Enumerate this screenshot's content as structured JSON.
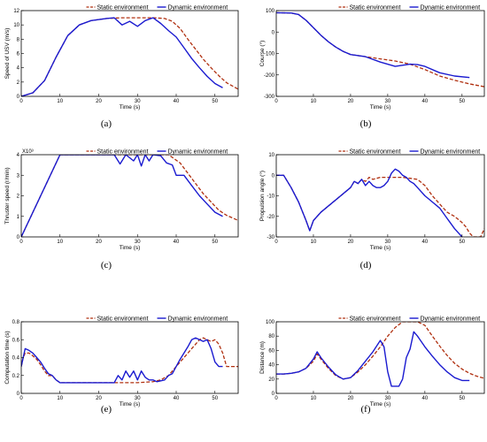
{
  "colors": {
    "static": "#b03010",
    "dynamic": "#1a1ad0",
    "axis": "#000000"
  },
  "chart_data": [
    {
      "type": "line",
      "caption": "(a)",
      "xlabel": "Time (s)",
      "ylabel": "Speed of USV (m/s)",
      "xlim": [
        0,
        56
      ],
      "ylim": [
        0,
        12
      ],
      "xticks": [
        0,
        10,
        20,
        30,
        40,
        50
      ],
      "yticks": [
        0,
        2,
        4,
        6,
        8,
        10,
        12
      ],
      "series": [
        {
          "name": "Static environment",
          "style": "dashed",
          "x": [
            0,
            3,
            6,
            9,
            12,
            15,
            18,
            22,
            26,
            30,
            34,
            37,
            39,
            41,
            43,
            45,
            47,
            49,
            51,
            53,
            56
          ],
          "y": [
            0,
            0.5,
            2.2,
            5.5,
            8.5,
            10,
            10.6,
            10.9,
            11,
            11,
            11,
            10.9,
            10.5,
            9.5,
            8,
            6.6,
            5.2,
            4,
            2.9,
            1.9,
            1
          ]
        },
        {
          "name": "Dynamic environment",
          "style": "solid",
          "x": [
            0,
            3,
            6,
            9,
            12,
            15,
            18,
            22,
            24,
            26,
            28,
            30,
            32,
            34,
            36,
            38,
            40,
            42,
            44,
            46,
            48,
            50,
            52
          ],
          "y": [
            0,
            0.5,
            2.2,
            5.5,
            8.5,
            10,
            10.6,
            10.9,
            11,
            10,
            10.5,
            9.8,
            10.6,
            11,
            10.2,
            9.2,
            8.3,
            6.8,
            5.3,
            4,
            2.8,
            1.8,
            1.2
          ]
        }
      ]
    },
    {
      "type": "line",
      "caption": "(b)",
      "xlabel": "Time (s)",
      "ylabel": "Course (°)",
      "xlim": [
        0,
        56
      ],
      "ylim": [
        -300,
        100
      ],
      "xticks": [
        0,
        10,
        20,
        30,
        40,
        50
      ],
      "yticks": [
        -300,
        -200,
        -100,
        0,
        100
      ],
      "series": [
        {
          "name": "Static environment",
          "style": "dashed",
          "x": [
            0,
            4,
            6,
            8,
            10,
            12,
            14,
            16,
            18,
            20,
            24,
            28,
            32,
            36,
            40,
            44,
            48,
            52,
            56
          ],
          "y": [
            90,
            89,
            82,
            55,
            20,
            -15,
            -45,
            -70,
            -90,
            -105,
            -115,
            -125,
            -135,
            -150,
            -175,
            -205,
            -225,
            -242,
            -255
          ]
        },
        {
          "name": "Dynamic environment",
          "style": "solid",
          "x": [
            0,
            4,
            6,
            8,
            10,
            12,
            14,
            16,
            18,
            20,
            24,
            28,
            32,
            34,
            36,
            38,
            40,
            44,
            48,
            52
          ],
          "y": [
            90,
            89,
            82,
            55,
            20,
            -15,
            -45,
            -70,
            -90,
            -105,
            -115,
            -140,
            -160,
            -155,
            -150,
            -152,
            -160,
            -190,
            -205,
            -212
          ]
        }
      ]
    },
    {
      "type": "line",
      "caption": "(c)",
      "xlabel": "Time (s)",
      "ylabel": "Thruster speed (r/min)",
      "exponent_label": "X10³",
      "xlim": [
        0,
        56
      ],
      "ylim": [
        0,
        4
      ],
      "xticks": [
        0,
        10,
        20,
        30,
        40,
        50
      ],
      "yticks": [
        0,
        1,
        2,
        3,
        4
      ],
      "series": [
        {
          "name": "Static environment",
          "style": "dashed",
          "x": [
            0,
            10,
            20,
            30,
            36,
            38,
            41,
            43,
            45,
            47,
            49,
            51,
            53,
            56
          ],
          "y": [
            0,
            4,
            4,
            4,
            4,
            4,
            3.6,
            3.1,
            2.6,
            2.1,
            1.7,
            1.3,
            1.05,
            0.8
          ]
        },
        {
          "name": "Dynamic environment",
          "style": "solid",
          "x": [
            0,
            10,
            20,
            24,
            25.5,
            27,
            29,
            30,
            31,
            32,
            33,
            34,
            36,
            37.5,
            39,
            40,
            42,
            44,
            46,
            48,
            50,
            52
          ],
          "y": [
            0,
            4,
            4,
            4,
            3.55,
            4,
            3.7,
            4,
            3.45,
            4,
            3.7,
            4,
            3.95,
            3.6,
            3.5,
            3,
            3,
            2.5,
            2,
            1.6,
            1.2,
            1
          ]
        }
      ]
    },
    {
      "type": "line",
      "caption": "(d)",
      "xlabel": "Time (s)",
      "ylabel": "Propulsion angle (°)",
      "xlim": [
        0,
        56
      ],
      "ylim": [
        -30,
        10
      ],
      "xticks": [
        0,
        10,
        20,
        30,
        40,
        50
      ],
      "yticks": [
        -30,
        -20,
        -10,
        0,
        10
      ],
      "series": [
        {
          "name": "Static environment",
          "style": "dashed",
          "x": [
            0,
            2,
            4,
            6,
            8,
            9,
            10,
            12,
            14,
            16,
            18,
            20,
            21,
            22,
            23,
            24,
            25,
            26,
            28,
            30,
            32,
            34,
            36,
            38,
            40,
            42,
            44,
            46,
            48,
            50,
            51,
            52,
            53,
            55,
            56
          ],
          "y": [
            0,
            0,
            -6,
            -13,
            -22,
            -27,
            -22,
            -18,
            -15,
            -12,
            -9,
            -6,
            -3,
            -4,
            -2,
            -3,
            -1,
            -2,
            -1,
            -1,
            -1,
            -1,
            -1.5,
            -2,
            -5,
            -10,
            -14,
            -18,
            -20,
            -23,
            -25,
            -28,
            -30,
            -30,
            -26
          ]
        },
        {
          "name": "Dynamic environment",
          "style": "solid",
          "x": [
            0,
            2,
            4,
            6,
            8,
            9,
            10,
            12,
            14,
            16,
            18,
            20,
            21,
            22,
            23,
            24,
            25,
            26,
            27,
            28,
            29,
            30,
            31,
            32,
            33,
            34,
            35,
            36,
            37,
            38,
            40,
            42,
            44,
            46,
            48,
            50
          ],
          "y": [
            0,
            0,
            -6,
            -13,
            -22,
            -27,
            -22,
            -18,
            -15,
            -12,
            -9,
            -6,
            -3,
            -4,
            -2,
            -5,
            -3,
            -5,
            -6,
            -6,
            -5,
            -3,
            1,
            3,
            2,
            0,
            -1,
            -3,
            -4,
            -6,
            -10,
            -13,
            -16,
            -21,
            -26,
            -30
          ]
        }
      ]
    },
    {
      "type": "line",
      "caption": "(e)",
      "xlabel": "Time (s)",
      "ylabel": "Computation time (s)",
      "xlim": [
        0,
        56
      ],
      "ylim": [
        0,
        0.8
      ],
      "xticks": [
        0,
        10,
        20,
        30,
        40,
        50
      ],
      "yticks": [
        0,
        0.2,
        0.4,
        0.6,
        0.8
      ],
      "series": [
        {
          "name": "Static environment",
          "style": "dashed",
          "x": [
            0,
            0.5,
            1,
            2,
            3,
            4,
            5,
            6,
            7,
            8,
            9,
            10,
            11,
            20,
            30,
            34,
            36,
            38,
            40,
            42,
            44,
            45,
            46,
            47,
            48,
            49,
            50,
            51,
            52,
            53,
            56
          ],
          "y": [
            0.3,
            0.4,
            0.45,
            0.45,
            0.42,
            0.38,
            0.32,
            0.25,
            0.2,
            0.2,
            0.15,
            0.12,
            0.12,
            0.12,
            0.12,
            0.13,
            0.15,
            0.2,
            0.3,
            0.4,
            0.5,
            0.55,
            0.6,
            0.62,
            0.6,
            0.58,
            0.6,
            0.55,
            0.45,
            0.3,
            0.3
          ]
        },
        {
          "name": "Dynamic environment",
          "style": "solid",
          "x": [
            0,
            0.5,
            1,
            2,
            3,
            4,
            5,
            6,
            7,
            8,
            9,
            10,
            11,
            20,
            24,
            25,
            26,
            27,
            28,
            29,
            30,
            31,
            32,
            33,
            34,
            35,
            36,
            37,
            38,
            39,
            40,
            41,
            42,
            43,
            44,
            45,
            46,
            47,
            48,
            49,
            50,
            51,
            52
          ],
          "y": [
            0.3,
            0.4,
            0.5,
            0.48,
            0.45,
            0.4,
            0.35,
            0.28,
            0.22,
            0.2,
            0.15,
            0.12,
            0.12,
            0.12,
            0.12,
            0.2,
            0.15,
            0.25,
            0.18,
            0.25,
            0.15,
            0.25,
            0.18,
            0.15,
            0.15,
            0.13,
            0.14,
            0.15,
            0.2,
            0.22,
            0.3,
            0.38,
            0.45,
            0.52,
            0.6,
            0.62,
            0.6,
            0.58,
            0.6,
            0.5,
            0.35,
            0.3,
            0.3
          ]
        }
      ]
    },
    {
      "type": "line",
      "caption": "(f)",
      "xlabel": "Time (s)",
      "ylabel": "Distance (m)",
      "xlim": [
        0,
        56
      ],
      "ylim": [
        0,
        100
      ],
      "xticks": [
        0,
        10,
        20,
        30,
        40,
        50
      ],
      "yticks": [
        0,
        20,
        40,
        60,
        80,
        100
      ],
      "series": [
        {
          "name": "Static environment",
          "style": "dashed",
          "x": [
            0,
            2,
            4,
            6,
            8,
            10,
            11,
            12,
            14,
            16,
            18,
            20,
            22,
            24,
            26,
            28,
            30,
            32,
            34,
            36,
            38,
            40,
            42,
            44,
            46,
            48,
            50,
            52,
            54,
            56
          ],
          "y": [
            27,
            27,
            28,
            30,
            35,
            45,
            55,
            48,
            35,
            25,
            20,
            22,
            30,
            40,
            52,
            65,
            80,
            92,
            100,
            100,
            100,
            95,
            80,
            66,
            53,
            42,
            34,
            28,
            24,
            21
          ]
        },
        {
          "name": "Dynamic environment",
          "style": "solid",
          "x": [
            0,
            2,
            4,
            6,
            8,
            10,
            11,
            12,
            14,
            16,
            18,
            20,
            22,
            24,
            26,
            28,
            29,
            30,
            31,
            32,
            33,
            34,
            35,
            36,
            37,
            38,
            40,
            42,
            44,
            46,
            48,
            50,
            52
          ],
          "y": [
            27,
            27,
            28,
            30,
            35,
            48,
            58,
            50,
            37,
            26,
            20,
            22,
            32,
            45,
            58,
            74,
            65,
            30,
            10,
            10,
            10,
            20,
            50,
            62,
            86,
            80,
            65,
            52,
            40,
            30,
            22,
            18,
            18
          ]
        }
      ]
    }
  ]
}
